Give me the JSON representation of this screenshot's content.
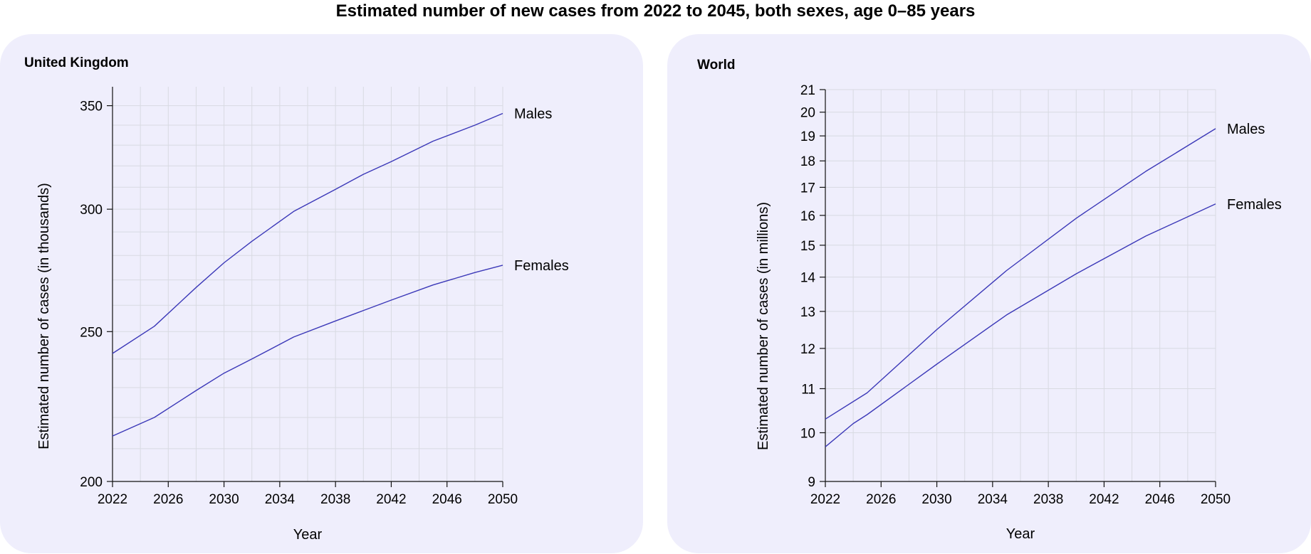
{
  "title": "Estimated number of new cases from 2022 to 2045, both sexes, age 0–85 years",
  "colors": {
    "panel_bg": "#efeefc",
    "line": "#3b38b8",
    "grid": "#d8dae2",
    "axis": "#111111"
  },
  "panels": [
    {
      "title": "United Kingdom"
    },
    {
      "title": "World"
    }
  ],
  "chart_data": [
    {
      "type": "line",
      "title": "United Kingdom",
      "xlabel": "Year",
      "ylabel": "Estimated number of cases (in thousands)",
      "y_scale": "log",
      "xlim": [
        2022,
        2050
      ],
      "ylim": [
        200,
        360
      ],
      "x_ticks": [
        2022,
        2026,
        2030,
        2034,
        2038,
        2042,
        2046,
        2050
      ],
      "y_ticks": [
        200,
        250,
        300,
        350
      ],
      "grid": true,
      "series": [
        {
          "name": "Males",
          "x": [
            2022,
            2025,
            2028,
            2030,
            2032,
            2035,
            2038,
            2040,
            2042,
            2045,
            2048,
            2050
          ],
          "y": [
            242,
            252,
            267,
            277,
            286,
            299,
            309,
            316,
            322,
            332,
            340,
            346
          ]
        },
        {
          "name": "Females",
          "x": [
            2022,
            2025,
            2028,
            2030,
            2032,
            2035,
            2038,
            2040,
            2042,
            2045,
            2048,
            2050
          ],
          "y": [
            214,
            220,
            229,
            235,
            240,
            248,
            254,
            258,
            262,
            268,
            273,
            276
          ]
        }
      ]
    },
    {
      "type": "line",
      "title": "World",
      "xlabel": "Year",
      "ylabel": "Estimated number of cases (in millions)",
      "y_scale": "log",
      "xlim": [
        2022,
        2050
      ],
      "ylim": [
        9,
        21
      ],
      "x_ticks": [
        2022,
        2026,
        2030,
        2034,
        2038,
        2042,
        2046,
        2050
      ],
      "y_ticks": [
        9,
        10,
        11,
        12,
        13,
        14,
        15,
        16,
        17,
        18,
        19,
        20,
        21
      ],
      "grid": true,
      "series": [
        {
          "name": "Males",
          "x": [
            2022,
            2025,
            2030,
            2035,
            2040,
            2045,
            2048,
            2050
          ],
          "y": [
            10.3,
            10.9,
            12.5,
            14.2,
            15.9,
            17.6,
            18.6,
            19.3
          ]
        },
        {
          "name": "Females",
          "x": [
            2022,
            2024,
            2025,
            2030,
            2035,
            2040,
            2045,
            2050
          ],
          "y": [
            9.7,
            10.2,
            10.4,
            11.6,
            12.9,
            14.1,
            15.3,
            16.4
          ]
        }
      ]
    }
  ]
}
